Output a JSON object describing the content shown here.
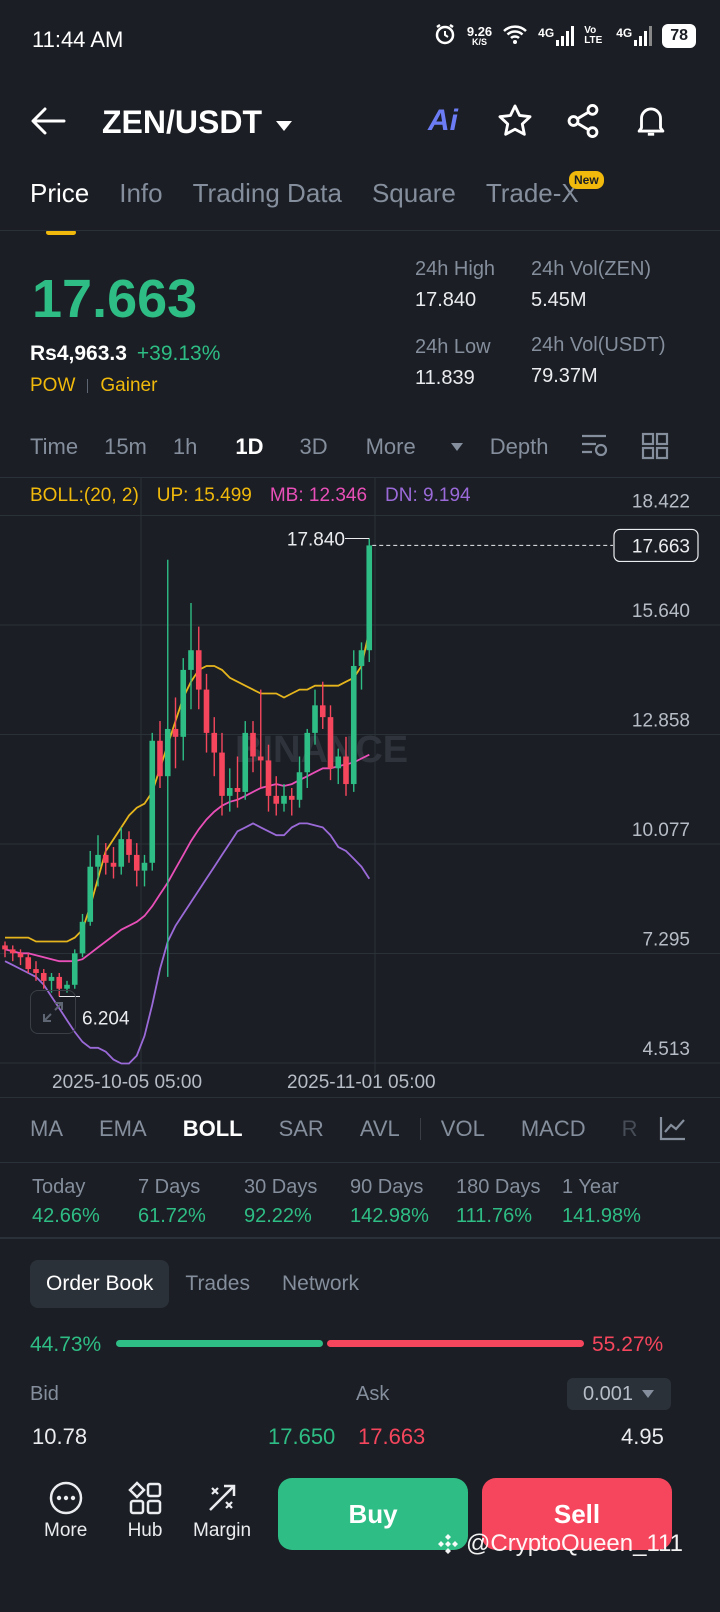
{
  "status": {
    "time": "11:44 AM",
    "net_speed": "9.26",
    "net_unit": "K/S",
    "net1": "4G",
    "volte": "Vo LTE",
    "net2": "4G",
    "battery": "78"
  },
  "header": {
    "pair": "ZEN/USDT",
    "ai_label": "Ai"
  },
  "tabs": [
    {
      "label": "Price"
    },
    {
      "label": "Info"
    },
    {
      "label": "Trading Data"
    },
    {
      "label": "Square"
    },
    {
      "label": "Trade-X"
    }
  ],
  "new_badge": "New",
  "ticker": {
    "last_price": "17.663",
    "local_price": "Rs4,963.3",
    "change": "+39.13%",
    "tag1": "POW",
    "tag2": "Gainer",
    "high_label": "24h High",
    "high": "17.840",
    "low_label": "24h Low",
    "low": "11.839",
    "vol_base_label": "24h Vol(ZEN)",
    "vol_base": "5.45M",
    "vol_quote_label": "24h Vol(USDT)",
    "vol_quote": "79.37M"
  },
  "timeframes": {
    "items": [
      "Time",
      "15m",
      "1h",
      "1D",
      "3D"
    ],
    "more": "More",
    "depth": "Depth",
    "active": "1D"
  },
  "boll": {
    "label": "BOLL:(20, 2)",
    "up": "UP: 15.499",
    "mb": "MB: 12.346",
    "dn": "DN: 9.194"
  },
  "chart_labels": {
    "y_ticks": [
      "18.422",
      "15.640",
      "12.858",
      "10.077",
      "7.295",
      "4.513"
    ],
    "x_ticks": [
      "2025-10-05 05:00",
      "2025-11-01 05:00"
    ],
    "high_marker": "17.840",
    "low_marker": "6.204",
    "last_tag": "17.663",
    "watermark": "BINANCE"
  },
  "chart_data": {
    "type": "candlestick",
    "ylim": [
      4.513,
      19.5
    ],
    "y_ticks": [
      18.422,
      15.64,
      12.858,
      10.077,
      7.295,
      4.513
    ],
    "x_ticks": [
      "2025-10-05 05:00",
      "2025-11-01 05:00"
    ],
    "candles": [
      [
        7.5,
        7.6,
        7.2,
        7.4
      ],
      [
        7.4,
        7.5,
        7.1,
        7.3
      ],
      [
        7.3,
        7.4,
        7.0,
        7.2
      ],
      [
        7.2,
        7.3,
        6.8,
        6.9
      ],
      [
        6.9,
        7.1,
        6.6,
        6.8
      ],
      [
        6.8,
        6.9,
        6.4,
        6.6
      ],
      [
        6.6,
        6.8,
        6.3,
        6.7
      ],
      [
        6.7,
        6.8,
        6.204,
        6.4
      ],
      [
        6.4,
        6.6,
        6.3,
        6.5
      ],
      [
        6.5,
        7.4,
        6.4,
        7.3
      ],
      [
        7.3,
        8.3,
        7.2,
        8.1
      ],
      [
        8.1,
        9.9,
        8.0,
        9.5
      ],
      [
        9.5,
        10.3,
        9.0,
        9.8
      ],
      [
        9.8,
        10.1,
        9.3,
        9.6
      ],
      [
        9.6,
        10.0,
        9.2,
        9.5
      ],
      [
        9.5,
        10.5,
        9.3,
        10.2
      ],
      [
        10.2,
        10.4,
        9.6,
        9.8
      ],
      [
        9.8,
        10.1,
        9.0,
        9.4
      ],
      [
        9.4,
        9.8,
        9.0,
        9.6
      ],
      [
        9.6,
        12.9,
        9.4,
        12.7
      ],
      [
        12.7,
        13.2,
        11.5,
        11.8
      ],
      [
        11.8,
        17.3,
        6.7,
        13.0
      ],
      [
        13.0,
        13.8,
        12.0,
        12.8
      ],
      [
        12.8,
        14.8,
        12.2,
        14.5
      ],
      [
        14.5,
        16.2,
        13.5,
        15.0
      ],
      [
        15.0,
        15.6,
        13.5,
        14.0
      ],
      [
        14.0,
        14.4,
        12.4,
        12.9
      ],
      [
        12.9,
        13.3,
        11.8,
        12.4
      ],
      [
        12.4,
        12.9,
        10.8,
        11.3
      ],
      [
        11.3,
        12.0,
        10.9,
        11.5
      ],
      [
        11.5,
        12.3,
        11.0,
        11.4
      ],
      [
        11.4,
        13.2,
        11.2,
        12.9
      ],
      [
        12.9,
        13.2,
        11.9,
        12.3
      ],
      [
        12.3,
        14.0,
        11.5,
        12.2
      ],
      [
        12.2,
        12.6,
        10.9,
        11.3
      ],
      [
        11.3,
        11.8,
        10.8,
        11.1
      ],
      [
        11.1,
        11.6,
        10.9,
        11.3
      ],
      [
        11.3,
        11.5,
        10.8,
        11.2
      ],
      [
        11.2,
        12.3,
        11.0,
        11.9
      ],
      [
        11.9,
        13.0,
        11.5,
        12.9
      ],
      [
        12.9,
        14.0,
        12.6,
        13.6
      ],
      [
        13.6,
        14.2,
        13.0,
        13.3
      ],
      [
        13.3,
        13.6,
        11.7,
        12.0
      ],
      [
        12.0,
        12.5,
        11.6,
        12.3
      ],
      [
        12.3,
        12.8,
        11.3,
        11.6
      ],
      [
        11.6,
        15.0,
        11.4,
        14.6
      ],
      [
        14.6,
        15.2,
        14.0,
        15.0
      ],
      [
        15.0,
        17.84,
        14.7,
        17.663
      ]
    ],
    "series": [
      {
        "name": "UP",
        "values": [
          7.7,
          7.7,
          7.7,
          7.7,
          7.6,
          7.6,
          7.6,
          7.6,
          7.6,
          7.7,
          7.9,
          8.5,
          9.2,
          9.9,
          10.2,
          10.5,
          10.8,
          11.0,
          11.1,
          11.4,
          12.0,
          12.6,
          13.2,
          13.8,
          14.2,
          14.5,
          14.6,
          14.6,
          14.5,
          14.3,
          14.2,
          14.1,
          14.0,
          13.9,
          13.9,
          13.9,
          13.8,
          13.9,
          14.0,
          14.0,
          14.1,
          14.1,
          14.1,
          14.1,
          14.2,
          14.3,
          14.6,
          15.499
        ]
      },
      {
        "name": "MB",
        "values": [
          7.4,
          7.35,
          7.3,
          7.3,
          7.25,
          7.2,
          7.15,
          7.1,
          7.1,
          7.1,
          7.15,
          7.3,
          7.45,
          7.6,
          7.75,
          7.9,
          8.0,
          8.1,
          8.25,
          8.5,
          8.8,
          9.1,
          9.45,
          9.8,
          10.15,
          10.45,
          10.7,
          10.9,
          11.05,
          11.15,
          11.2,
          11.3,
          11.4,
          11.5,
          11.55,
          11.6,
          11.55,
          11.6,
          11.7,
          11.8,
          11.9,
          12.0,
          12.0,
          12.05,
          12.1,
          12.15,
          12.25,
          12.346
        ]
      },
      {
        "name": "DN",
        "values": [
          7.1,
          7.0,
          6.9,
          6.8,
          6.7,
          6.5,
          6.2,
          5.9,
          5.6,
          5.3,
          5.05,
          4.9,
          4.9,
          4.8,
          4.6,
          4.5,
          4.5,
          4.7,
          5.2,
          6.0,
          6.9,
          7.6,
          8.0,
          8.3,
          8.6,
          8.9,
          9.2,
          9.5,
          9.8,
          10.1,
          10.4,
          10.5,
          10.6,
          10.5,
          10.4,
          10.3,
          10.3,
          10.5,
          10.6,
          10.6,
          10.55,
          10.5,
          10.3,
          10.0,
          9.9,
          9.7,
          9.5,
          9.194
        ]
      }
    ]
  },
  "indicators": {
    "items": [
      "MA",
      "EMA",
      "BOLL",
      "SAR",
      "AVL",
      "VOL",
      "MACD",
      "R"
    ],
    "active": "BOLL"
  },
  "performance": [
    {
      "label": "Today",
      "value": "42.66%"
    },
    {
      "label": "7 Days",
      "value": "61.72%"
    },
    {
      "label": "30 Days",
      "value": "92.22%"
    },
    {
      "label": "90 Days",
      "value": "142.98%"
    },
    {
      "label": "180 Days",
      "value": "111.76%"
    },
    {
      "label": "1 Year",
      "value": "141.98%"
    }
  ],
  "orderbook": {
    "tabs": [
      "Order Book",
      "Trades",
      "Network"
    ],
    "bid_pct": "44.73%",
    "ask_pct": "55.27%",
    "bid_ratio": 0.4473,
    "bid_label": "Bid",
    "ask_label": "Ask",
    "precision": "0.001",
    "bid_qty": "10.78",
    "bid_price": "17.650",
    "ask_price": "17.663",
    "ask_qty": "4.95"
  },
  "bottom_nav": {
    "more": "More",
    "hub": "Hub",
    "margin": "Margin",
    "buy": "Buy",
    "sell": "Sell",
    "watermark": "@CryptoQueen_111"
  },
  "colors": {
    "bg": "#1b1e24",
    "green": "#2ebd85",
    "red": "#f6465d",
    "yellow": "#f0b90b",
    "up": "#e6b51d",
    "mb": "#e84fb8",
    "dn": "#9b6ad9"
  }
}
